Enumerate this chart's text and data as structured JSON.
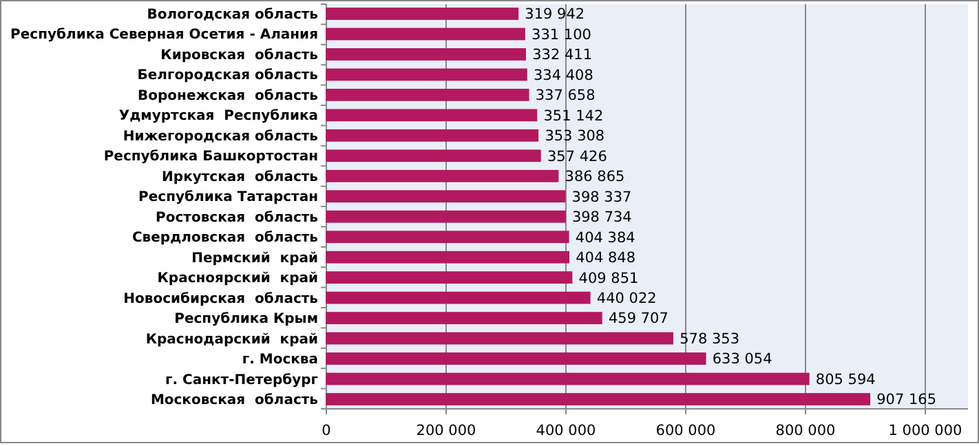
{
  "chart_data": {
    "type": "bar",
    "orientation": "horizontal",
    "categories": [
      "Вологодская область",
      "Республика Северная Осетия - Алания",
      "Кировская  область",
      "Белгородская область",
      "Воронежская  область",
      "Удмуртская  Республика",
      "Нижегородская область",
      "Республика Башкортостан",
      "Иркутская  область",
      "Республика Татарстан",
      "Ростовская  область",
      "Свердловская  область",
      "Пермский  край",
      "Красноярский  край",
      "Новосибирская  область",
      "Республика Крым",
      "Краснодарский  край",
      "г. Москва",
      "г. Санкт-Петербург",
      "Московская  область"
    ],
    "values": [
      319942,
      331100,
      332411,
      334408,
      337658,
      351142,
      353308,
      357426,
      386865,
      398337,
      398734,
      404384,
      404848,
      409851,
      440022,
      459707,
      578353,
      633054,
      805594,
      907165
    ],
    "value_labels": [
      "319 942",
      "331 100",
      "332 411",
      "334 408",
      "337 658",
      "351 142",
      "353 308",
      "357 426",
      "386 865",
      "398 337",
      "398 734",
      "404 384",
      "404 848",
      "409 851",
      "440 022",
      "459 707",
      "578 353",
      "633 054",
      "805 594",
      "907 165"
    ],
    "color": "#b3195f",
    "xlim": [
      0,
      1000000
    ],
    "xticks": [
      0,
      {
        "value": 200000,
        "label": "200 000"
      },
      {
        "value": 400000,
        "label": "400 000"
      },
      {
        "value": 600000,
        "label": "600 000"
      },
      {
        "value": 800000,
        "label": "800 000"
      },
      {
        "value": 1000000,
        "label": "1 000 000"
      }
    ],
    "grid": "x"
  }
}
